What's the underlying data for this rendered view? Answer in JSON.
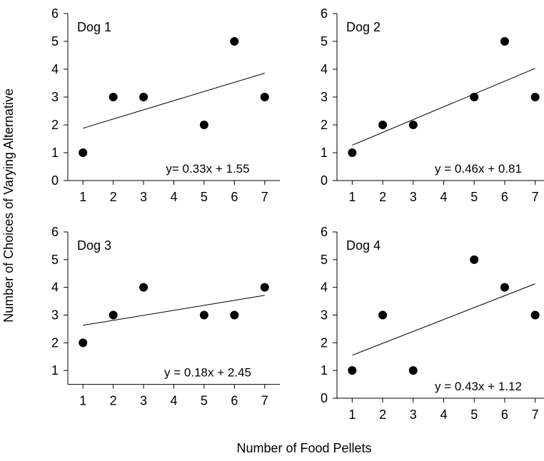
{
  "figure": {
    "ylabel": "Number of Choices of Varying Alternative",
    "xlabel": "Number of Food Pellets"
  },
  "chart_data": [
    {
      "type": "scatter",
      "title": "Dog 1",
      "equation": "y= 0.33x + 1.55",
      "x": [
        1,
        2,
        3,
        5,
        6,
        7
      ],
      "y": [
        1,
        3,
        3,
        2,
        5,
        3
      ],
      "trendline": {
        "slope": 0.33,
        "intercept": 1.55
      },
      "xticks": [
        "1",
        "2",
        "3",
        "4",
        "5",
        "6",
        "7"
      ],
      "yticks": [
        "0",
        "1",
        "2",
        "3",
        "4",
        "5",
        "6"
      ],
      "xlim": [
        0.5,
        7.5
      ],
      "ylim": [
        0,
        6
      ]
    },
    {
      "type": "scatter",
      "title": "Dog 2",
      "equation": "y = 0.46x + 0.81",
      "x": [
        1,
        2,
        3,
        5,
        6,
        7
      ],
      "y": [
        1,
        2,
        2,
        3,
        5,
        3
      ],
      "trendline": {
        "slope": 0.46,
        "intercept": 0.81
      },
      "xticks": [
        "1",
        "2",
        "3",
        "4",
        "5",
        "6",
        "7"
      ],
      "yticks": [
        "0",
        "1",
        "2",
        "3",
        "4",
        "5",
        "6"
      ],
      "xlim": [
        0.5,
        7.5
      ],
      "ylim": [
        0,
        6
      ]
    },
    {
      "type": "scatter",
      "title": "Dog 3",
      "equation": "y = 0.18x + 2.45",
      "x": [
        1,
        2,
        3,
        5,
        6,
        7
      ],
      "y": [
        2,
        3,
        4,
        3,
        3,
        4
      ],
      "trendline": {
        "slope": 0.18,
        "intercept": 2.45
      },
      "xticks": [
        "1",
        "2",
        "3",
        "4",
        "5",
        "6",
        "7"
      ],
      "yticks": [
        "1",
        "2",
        "3",
        "4",
        "5",
        "6"
      ],
      "xlim": [
        0.5,
        7.5
      ],
      "ylim": [
        0.5,
        6
      ]
    },
    {
      "type": "scatter",
      "title": "Dog 4",
      "equation": "y = 0.43x + 1.12",
      "x": [
        1,
        2,
        3,
        5,
        6,
        7
      ],
      "y": [
        1,
        3,
        1,
        5,
        4,
        3
      ],
      "trendline": {
        "slope": 0.43,
        "intercept": 1.12
      },
      "xticks": [
        "1",
        "2",
        "3",
        "4",
        "5",
        "6",
        "7"
      ],
      "yticks": [
        "0",
        "1",
        "2",
        "3",
        "4",
        "5",
        "6"
      ],
      "xlim": [
        0.5,
        7.5
      ],
      "ylim": [
        0,
        6
      ]
    }
  ]
}
